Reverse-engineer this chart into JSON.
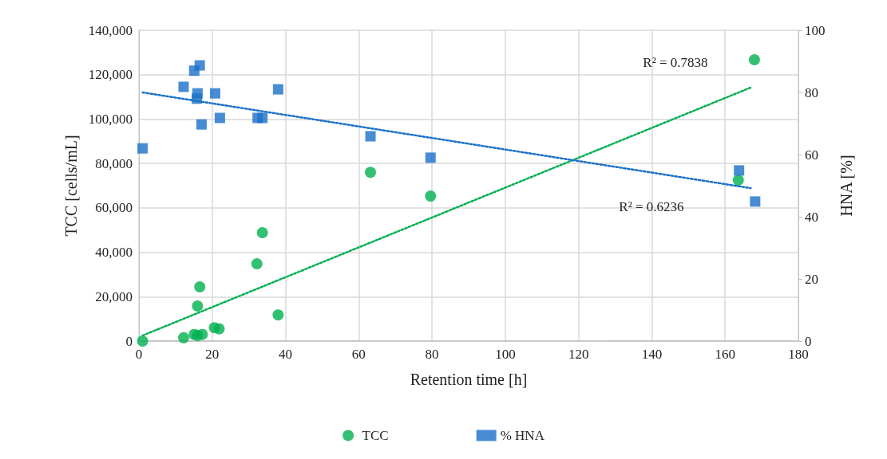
{
  "chart_data": {
    "type": "scatter",
    "xlabel": "Retention time [h]",
    "ylabel": "TCC [cells/mL]",
    "y2label": "HNA [%]",
    "xlim": [
      0,
      180
    ],
    "xticks": [
      0,
      20,
      40,
      60,
      80,
      100,
      120,
      140,
      160,
      180
    ],
    "ylim": [
      0,
      140000
    ],
    "yticks": [
      {
        "value": 0,
        "label": "0"
      },
      {
        "value": 20000,
        "label": "20,000"
      },
      {
        "value": 40000,
        "label": "40,000"
      },
      {
        "value": 60000,
        "label": "60,000"
      },
      {
        "value": 80000,
        "label": "80,000"
      },
      {
        "value": 100000,
        "label": "100,000"
      },
      {
        "value": 120000,
        "label": "120,000"
      },
      {
        "value": 140000,
        "label": "140,000"
      }
    ],
    "y2lim": [
      0,
      100
    ],
    "y2ticks": [
      0,
      20,
      40,
      60,
      80,
      100
    ],
    "grid": true,
    "legend": "bottom",
    "series": [
      {
        "name": "TCC",
        "marker": "circle",
        "color": "#00b050",
        "x": [
          1,
          12.2,
          15.1,
          16,
          17.3,
          16,
          16.6,
          20.6,
          21.9,
          32.2,
          33.7,
          38,
          63.2,
          79.6,
          163.6,
          168
        ],
        "values": [
          0,
          1500,
          3000,
          2500,
          3000,
          15800,
          24400,
          6000,
          5500,
          34800,
          48800,
          11800,
          76000,
          65300,
          72500,
          126700
        ]
      },
      {
        "name": "% HNA",
        "marker": "square",
        "axis": "y2",
        "color": "#1a70c8",
        "x": [
          1,
          12.2,
          15.1,
          16.6,
          16,
          15.8,
          17.1,
          20.8,
          22.1,
          32.4,
          33.7,
          38,
          63.2,
          79.6,
          163.8,
          168.2
        ],
        "values": [
          62,
          81.8,
          87,
          88.7,
          79.7,
          78,
          69.7,
          79.7,
          71.8,
          71.8,
          71.8,
          81,
          65.9,
          59,
          54.9,
          44.9
        ]
      },
      {
        "type": "line",
        "marker": "none",
        "line_style": "dotted",
        "color": "#00b050",
        "x": [
          1,
          167
        ],
        "values": [
          2500,
          114200
        ]
      },
      {
        "type": "line",
        "marker": "none",
        "line_style": "dotted",
        "axis": "y2",
        "color": "#1a70c8",
        "x": [
          1,
          167
        ],
        "values": [
          80,
          49.2
        ]
      }
    ],
    "annotations": [
      "R² = 0.7838",
      "R² = 0.6236"
    ]
  }
}
